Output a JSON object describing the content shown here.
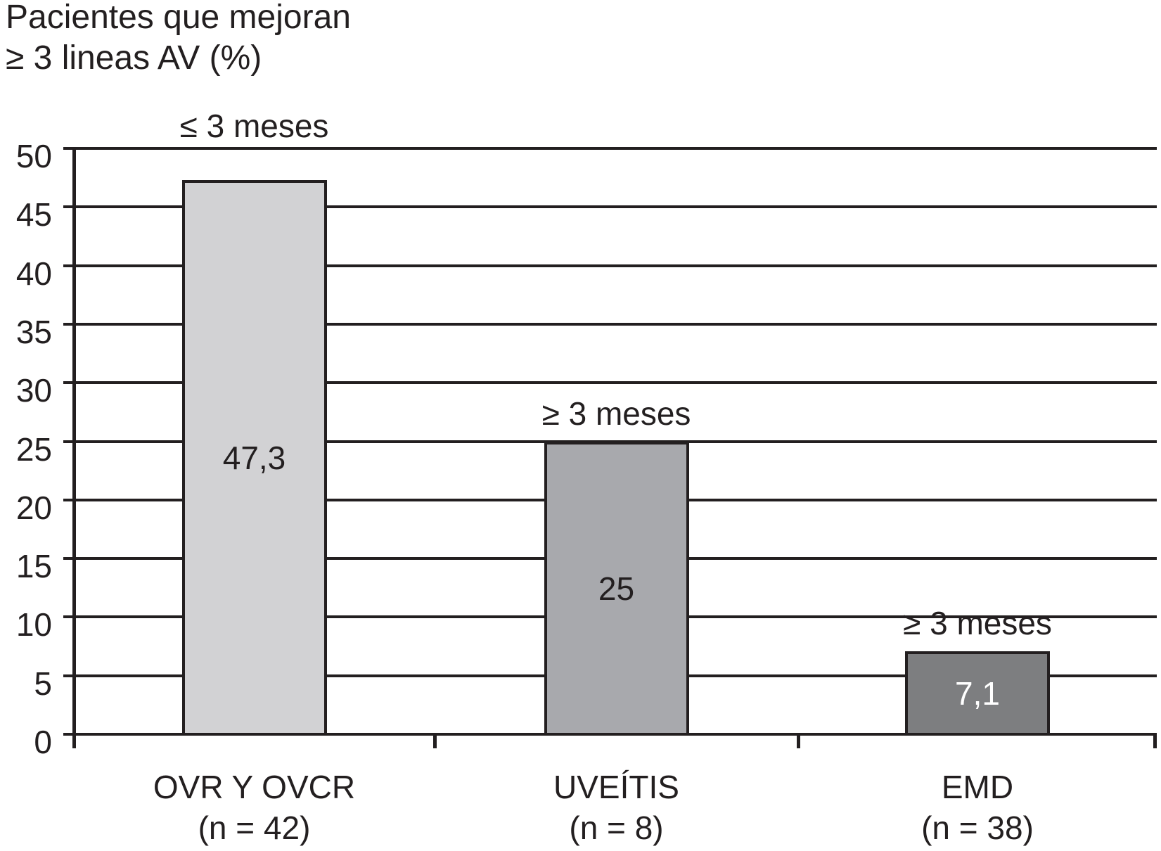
{
  "title": {
    "line1": "Pacientes que mejoran",
    "line2": "≥ 3 lineas AV (%)"
  },
  "colors": {
    "ink": "#231f20",
    "background": "#ffffff"
  },
  "chart_data": {
    "type": "bar",
    "title": "Pacientes que mejoran ≥ 3 lineas AV (%)",
    "ylabel": "Pacientes que mejoran ≥ 3 lineas AV (%)",
    "xlabel": "",
    "ylim": [
      0,
      50
    ],
    "yticks": [
      0,
      5,
      10,
      15,
      20,
      25,
      30,
      35,
      40,
      45,
      50
    ],
    "grid": true,
    "legend_position": "none",
    "categories": [
      "OVR Y OVCR",
      "UVEÍTIS",
      "EMD"
    ],
    "bars": [
      {
        "category": "OVR Y OVCR",
        "n_label": "(n = 42)",
        "value": 47.3,
        "value_label": "47,3",
        "time_label": "≤ 3 meses",
        "fill": "#d2d2d4",
        "label_color": "#231f20"
      },
      {
        "category": "UVEÍTIS",
        "n_label": "(n = 8)",
        "value": 25,
        "value_label": "25",
        "time_label": "≥ 3 meses",
        "fill": "#a8a9ad",
        "label_color": "#231f20"
      },
      {
        "category": "EMD",
        "n_label": "(n = 38)",
        "value": 7.1,
        "value_label": "7,1",
        "time_label": "≥ 3 meses",
        "fill": "#7d7e80",
        "label_color": "#ffffff"
      }
    ]
  }
}
